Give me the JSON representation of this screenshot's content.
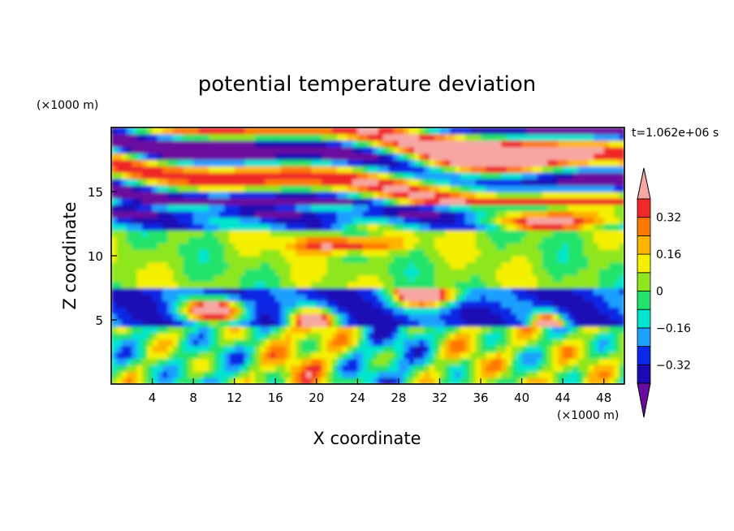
{
  "chart_data": {
    "type": "heatmap",
    "title": "potential temperature deviation",
    "xlabel": "X coordinate",
    "ylabel": "Z coordinate",
    "x_unit": "(×1000 m)",
    "y_unit": "(×1000 m)",
    "time_label": "t=1.062e+06 s",
    "xlim": [
      0,
      50
    ],
    "ylim": [
      0,
      20
    ],
    "x_ticks": [
      4,
      8,
      12,
      16,
      20,
      24,
      28,
      32,
      36,
      40,
      44,
      48
    ],
    "y_ticks": [
      5,
      10,
      15
    ],
    "colorbar": {
      "levels": [
        -0.4,
        -0.32,
        -0.24,
        -0.16,
        -0.08,
        0,
        0.08,
        0.16,
        0.24,
        0.32,
        0.4
      ],
      "tick_values": [
        0.32,
        0.16,
        0,
        -0.16,
        -0.32
      ],
      "tick_labels": [
        "0.32",
        "0.16",
        "0",
        "−0.16",
        "−0.32"
      ],
      "colors": [
        "#6a0a9e",
        "#1c0ab4",
        "#0a28e6",
        "#1ea0ff",
        "#00e5cf",
        "#21e36b",
        "#8ee61e",
        "#f4f000",
        "#ffb400",
        "#ff7800",
        "#f02828",
        "#f6a7a3"
      ]
    },
    "bands": [
      {
        "z": [
          0,
          4.5
        ],
        "pattern": "convective mixed layer, alternating warm (red/orange) and cool (blue/cyan) cells"
      },
      {
        "z": [
          4.5,
          7.5
        ],
        "pattern": "strong cold anomaly (navy/purple) with warm pink plumes near x≈10, 20, 31, 42"
      },
      {
        "z": [
          7.5,
          12
        ],
        "pattern": "near-neutral (green/yellow)"
      },
      {
        "z": [
          12,
          14
        ],
        "pattern": "cold (blue/purple) with warm patch near x≈40–50"
      },
      {
        "z": [
          14,
          20
        ],
        "pattern": "alternating strong warm (pink) and cold (purple) layers"
      }
    ]
  }
}
